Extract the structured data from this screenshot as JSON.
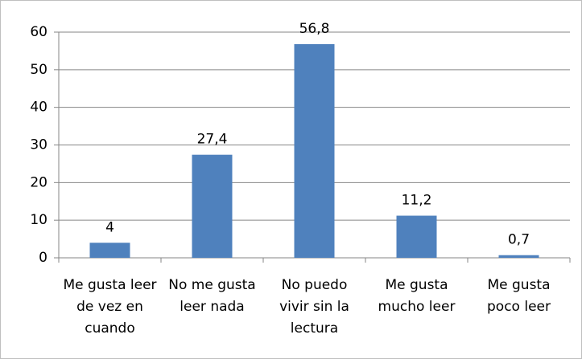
{
  "chart_data": {
    "type": "bar",
    "categories": [
      "Me gusta leer de vez en cuando",
      "No me gusta leer nada",
      "No puedo vivir sin la lectura",
      "Me gusta mucho leer",
      "Me gusta poco leer"
    ],
    "values": [
      4,
      27.4,
      56.8,
      11.2,
      0.7
    ],
    "value_labels": [
      "4",
      "27,4",
      "56,8",
      "11,2",
      "0,7"
    ],
    "color": "#4f81bd",
    "ylim": [
      0,
      60
    ],
    "yticks": [
      0,
      10,
      20,
      30,
      40,
      50,
      60
    ],
    "grid": true
  }
}
